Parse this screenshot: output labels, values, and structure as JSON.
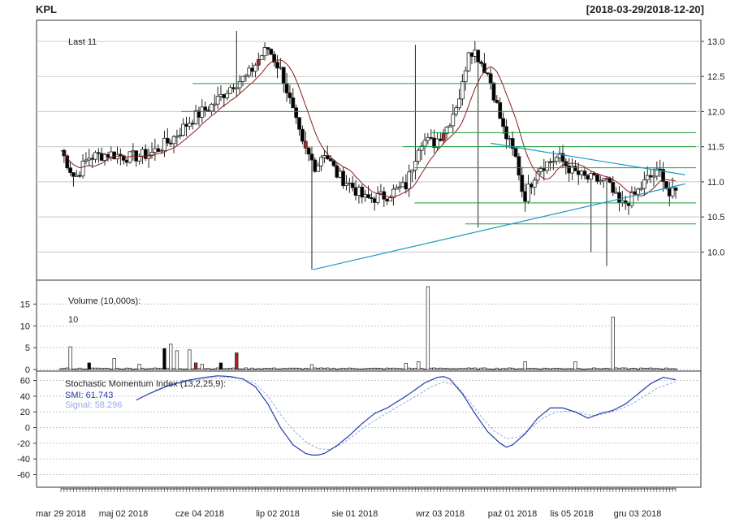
{
  "header": {
    "ticker": "KPL",
    "date_range": "[2018-03-29/2018-12-20]"
  },
  "colors": {
    "background": "#ffffff",
    "grid": "#c8c8c8",
    "up_candle": "#ffffff",
    "down_candle": "#000000",
    "highlight_candle": "#b22222",
    "moving_average": "#8b1a1a",
    "support_resistance": "#1a9a3a",
    "trendline": "#1a9ac8",
    "smi_line": "#1f3fa8",
    "signal_line": "#9aa8e8"
  },
  "chart_data": [
    {
      "type": "candlestick",
      "title": "",
      "annotation": "Last 11",
      "x_axis": {
        "tick_labels": [
          "mar 29 2018",
          "maj 02 2018",
          "cze 04 2018",
          "lip 02 2018",
          "sie 01 2018",
          "wrz 03 2018",
          "paź 01 2018",
          "lis 05 2018",
          "gru 03 2018"
        ],
        "range": [
          "2018-03-29",
          "2018-12-20"
        ]
      },
      "y_axis": {
        "tick_labels": [
          "10.0",
          "10.5",
          "11.0",
          "11.5",
          "12.0",
          "12.5",
          "13.0"
        ],
        "ylim": [
          9.6,
          13.3
        ],
        "position": "right"
      },
      "grid": true,
      "close_series_knots": [
        [
          0,
          11.45
        ],
        [
          4,
          11.05
        ],
        [
          8,
          11.35
        ],
        [
          14,
          11.4
        ],
        [
          20,
          11.35
        ],
        [
          26,
          11.4
        ],
        [
          32,
          11.6
        ],
        [
          38,
          11.9
        ],
        [
          44,
          12.1
        ],
        [
          50,
          12.4
        ],
        [
          54,
          12.5
        ],
        [
          58,
          12.8
        ],
        [
          60,
          12.9
        ],
        [
          64,
          12.55
        ],
        [
          70,
          11.5
        ],
        [
          74,
          11.2
        ],
        [
          76,
          11.45
        ],
        [
          80,
          11.1
        ],
        [
          84,
          10.95
        ],
        [
          88,
          10.75
        ],
        [
          94,
          10.8
        ],
        [
          100,
          10.95
        ],
        [
          104,
          11.6
        ],
        [
          108,
          11.55
        ],
        [
          112,
          11.8
        ],
        [
          116,
          12.3
        ],
        [
          118,
          12.9
        ],
        [
          120,
          12.85
        ],
        [
          124,
          12.5
        ],
        [
          128,
          11.75
        ],
        [
          132,
          11.3
        ],
        [
          134,
          10.75
        ],
        [
          138,
          11.2
        ],
        [
          144,
          11.35
        ],
        [
          148,
          11.15
        ],
        [
          152,
          11.05
        ],
        [
          158,
          11.0
        ],
        [
          162,
          10.65
        ],
        [
          166,
          10.8
        ],
        [
          170,
          11.05
        ],
        [
          174,
          11.15
        ],
        [
          176,
          10.8
        ],
        [
          178,
          10.85
        ]
      ],
      "ohlc_samples": [
        {
          "date": "2018-03-29",
          "close": 11.45,
          "color": "highlight"
        },
        {
          "date": "2018-04-04",
          "close": 10.9,
          "color": "down"
        },
        {
          "date": "2018-05-02",
          "close": 11.35,
          "color": "up"
        },
        {
          "date": "2018-06-13",
          "close": 12.9,
          "high": 13.15,
          "color": "up"
        },
        {
          "date": "2018-06-22",
          "close": 11.2,
          "color": "highlight"
        },
        {
          "date": "2018-07-13",
          "close": 11.05,
          "color": "highlight"
        },
        {
          "date": "2018-07-16",
          "close": 10.8,
          "low": 9.75,
          "color": "down"
        },
        {
          "date": "2018-08-29",
          "close": 12.9,
          "high": 12.95,
          "color": "up"
        },
        {
          "date": "2018-09-10",
          "close": 11.45,
          "color": "highlight"
        },
        {
          "date": "2018-09-26",
          "close": 10.75,
          "low": 10.35,
          "color": "down"
        },
        {
          "date": "2018-11-14",
          "close": 10.85,
          "low": 10.0,
          "color": "down"
        },
        {
          "date": "2018-11-20",
          "close": 10.8,
          "low": 9.8,
          "color": "down"
        },
        {
          "date": "2018-12-20",
          "close": 11.0,
          "color": "down"
        }
      ],
      "overlays": {
        "horizontal_lines": [
          {
            "y": 12.4,
            "from": "2018-05-25",
            "to": "2018-12-20"
          },
          {
            "y": 12.0,
            "from": "2018-05-20",
            "to": "2018-12-20"
          },
          {
            "y": 11.7,
            "from": "2018-09-05",
            "to": "2018-12-20"
          },
          {
            "y": 11.5,
            "from": "2018-08-24",
            "to": "2018-12-20"
          },
          {
            "y": 11.2,
            "from": "2018-08-29",
            "to": "2018-12-20"
          },
          {
            "y": 10.7,
            "from": "2018-08-29",
            "to": "2018-12-20"
          },
          {
            "y": 10.4,
            "from": "2018-09-20",
            "to": "2018-12-20"
          }
        ],
        "trendlines": [
          {
            "from": [
              "2018-07-16",
              9.75
            ],
            "to": [
              "2018-12-24",
              10.97
            ]
          },
          {
            "from": [
              "2018-10-01",
              11.55
            ],
            "to": [
              "2018-12-24",
              11.1
            ]
          }
        ]
      }
    },
    {
      "type": "bar",
      "title": "Volume (10,000s):",
      "annotation": "10",
      "y_axis": {
        "tick_labels": [
          "0",
          "5",
          "10",
          "15"
        ],
        "ylim": [
          0,
          19
        ],
        "position": "left"
      },
      "grid": true,
      "volume_spikes": [
        {
          "index": 3,
          "value": 5.2,
          "color": "up"
        },
        {
          "index": 9,
          "value": 1.5,
          "color": "down"
        },
        {
          "index": 17,
          "value": 2.5,
          "color": "up"
        },
        {
          "index": 25,
          "value": 1.2,
          "color": "up"
        },
        {
          "index": 33,
          "value": 4.8,
          "color": "down"
        },
        {
          "index": 35,
          "value": 5.8,
          "color": "up"
        },
        {
          "index": 37,
          "value": 4.3,
          "color": "up"
        },
        {
          "index": 41,
          "value": 4.5,
          "color": "up"
        },
        {
          "index": 43,
          "value": 1.5,
          "color": "highlight"
        },
        {
          "index": 45,
          "value": 1.2,
          "color": "up"
        },
        {
          "index": 51,
          "value": 1.5,
          "color": "down"
        },
        {
          "index": 56,
          "value": 3.8,
          "color": "highlight"
        },
        {
          "index": 80,
          "value": 1.1,
          "color": "up"
        },
        {
          "index": 110,
          "value": 1.4,
          "color": "up"
        },
        {
          "index": 114,
          "value": 1.8,
          "color": "up"
        },
        {
          "index": 117,
          "value": 19.0,
          "color": "up"
        },
        {
          "index": 148,
          "value": 1.8,
          "color": "up"
        },
        {
          "index": 164,
          "value": 1.8,
          "color": "up"
        },
        {
          "index": 176,
          "value": 12.0,
          "color": "up"
        }
      ],
      "baseline_volume": 0.3
    },
    {
      "type": "line",
      "title": "Stochastic Momentum Index (13,2,25,9):",
      "y_axis": {
        "tick_labels": [
          "-60",
          "-40",
          "-20",
          "0",
          "20",
          "40",
          "60"
        ],
        "ylim": [
          -76,
          72
        ],
        "position": "left"
      },
      "grid": true,
      "series": [
        {
          "name": "SMI",
          "latest": "61.743",
          "knots": [
            [
              24,
              35
            ],
            [
              28,
              43
            ],
            [
              34,
              53
            ],
            [
              40,
              60
            ],
            [
              46,
              64
            ],
            [
              50,
              66
            ],
            [
              54,
              65
            ],
            [
              58,
              62
            ],
            [
              62,
              52
            ],
            [
              66,
              30
            ],
            [
              70,
              0
            ],
            [
              74,
              -22
            ],
            [
              78,
              -33
            ],
            [
              80,
              -35
            ],
            [
              82,
              -35
            ],
            [
              84,
              -33
            ],
            [
              88,
              -23
            ],
            [
              92,
              -10
            ],
            [
              96,
              5
            ],
            [
              100,
              18
            ],
            [
              104,
              25
            ],
            [
              110,
              40
            ],
            [
              116,
              57
            ],
            [
              120,
              64
            ],
            [
              122,
              65
            ],
            [
              124,
              62
            ],
            [
              128,
              43
            ],
            [
              132,
              18
            ],
            [
              136,
              -5
            ],
            [
              140,
              -20
            ],
            [
              142,
              -25
            ],
            [
              144,
              -22
            ],
            [
              148,
              -8
            ],
            [
              152,
              12
            ],
            [
              156,
              25
            ],
            [
              160,
              25
            ],
            [
              164,
              20
            ],
            [
              168,
              12
            ],
            [
              172,
              18
            ],
            [
              176,
              22
            ],
            [
              180,
              30
            ],
            [
              184,
              43
            ],
            [
              188,
              56
            ],
            [
              192,
              64
            ],
            [
              196,
              61
            ]
          ]
        },
        {
          "name": "Signal",
          "latest": "58.296",
          "knots": [
            [
              30,
              48
            ],
            [
              36,
              55
            ],
            [
              42,
              60
            ],
            [
              48,
              63
            ],
            [
              54,
              64
            ],
            [
              58,
              62
            ],
            [
              62,
              56
            ],
            [
              66,
              40
            ],
            [
              70,
              17
            ],
            [
              74,
              -3
            ],
            [
              78,
              -18
            ],
            [
              82,
              -27
            ],
            [
              86,
              -28
            ],
            [
              90,
              -20
            ],
            [
              94,
              -8
            ],
            [
              98,
              4
            ],
            [
              102,
              14
            ],
            [
              108,
              28
            ],
            [
              114,
              42
            ],
            [
              118,
              52
            ],
            [
              122,
              58
            ],
            [
              126,
              54
            ],
            [
              130,
              35
            ],
            [
              134,
              14
            ],
            [
              138,
              -4
            ],
            [
              142,
              -14
            ],
            [
              146,
              -12
            ],
            [
              150,
              0
            ],
            [
              154,
              13
            ],
            [
              158,
              20
            ],
            [
              162,
              21
            ],
            [
              166,
              18
            ],
            [
              170,
              15
            ],
            [
              174,
              18
            ],
            [
              178,
              23
            ],
            [
              182,
              30
            ],
            [
              186,
              40
            ],
            [
              190,
              50
            ],
            [
              194,
              56
            ],
            [
              196,
              58
            ]
          ]
        }
      ]
    }
  ]
}
